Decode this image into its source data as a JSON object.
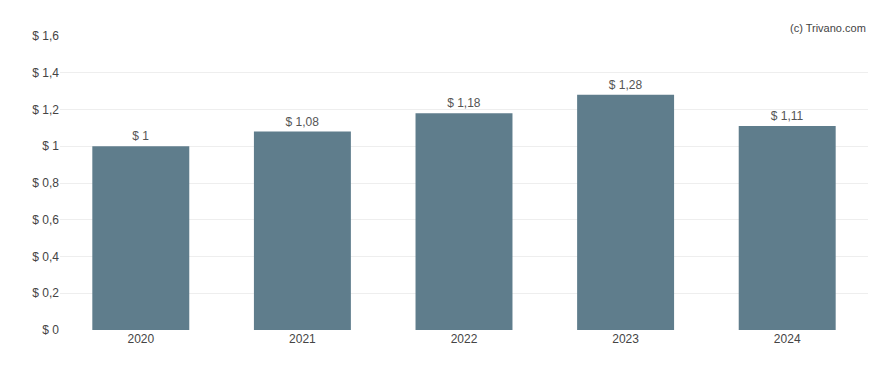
{
  "chart_data": {
    "type": "bar",
    "categories": [
      "2020",
      "2021",
      "2022",
      "2023",
      "2024"
    ],
    "values": [
      1.0,
      1.08,
      1.18,
      1.28,
      1.11
    ],
    "value_labels": [
      "$ 1",
      "$ 1,08",
      "$ 1,18",
      "$ 1,28",
      "$ 1,11"
    ],
    "data_labels": true,
    "color": "#5f7d8c",
    "ylim": [
      0,
      1.6
    ],
    "yticks": [
      {
        "value": 0,
        "label": "$ 0"
      },
      {
        "value": 0.2,
        "label": "$ 0,2"
      },
      {
        "value": 0.4,
        "label": "$ 0,4"
      },
      {
        "value": 0.6,
        "label": "$ 0,6"
      },
      {
        "value": 0.8,
        "label": "$ 0,8"
      },
      {
        "value": 1.0,
        "label": "$ 1"
      },
      {
        "value": 1.2,
        "label": "$ 1,2"
      },
      {
        "value": 1.4,
        "label": "$ 1,4"
      },
      {
        "value": 1.6,
        "label": "$ 1,6"
      }
    ],
    "grid": true,
    "annotations": [
      "(c) Trivano.com"
    ]
  }
}
